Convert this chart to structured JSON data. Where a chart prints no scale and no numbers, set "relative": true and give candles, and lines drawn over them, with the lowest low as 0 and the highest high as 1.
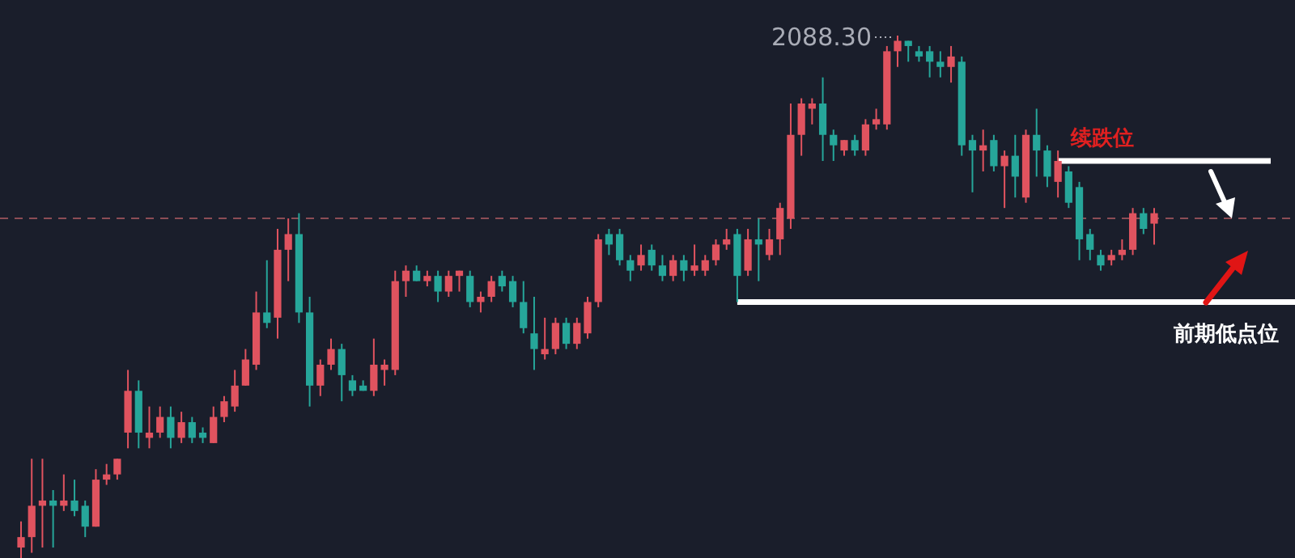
{
  "chart_data": {
    "type": "candlestick",
    "relative": true,
    "categories": [
      null,
      null,
      null,
      null,
      null,
      null,
      null,
      null,
      null,
      null,
      null,
      null,
      null,
      null,
      null,
      null,
      null,
      null,
      null,
      null,
      null,
      null,
      null,
      null,
      null,
      null,
      null,
      null,
      null,
      null,
      null,
      null,
      null,
      null,
      null,
      null,
      null,
      null,
      null,
      null,
      null,
      null,
      null,
      null,
      null,
      null,
      null,
      null,
      null,
      null,
      null,
      null,
      null,
      null,
      null,
      null,
      null,
      null,
      null,
      null,
      null,
      null,
      null,
      null,
      null,
      null,
      null,
      null,
      null,
      null,
      null,
      null,
      null,
      null,
      null,
      null,
      null,
      null,
      null,
      null,
      null,
      null,
      null,
      null,
      null,
      null,
      null,
      null,
      null,
      null,
      null,
      null,
      null,
      null,
      null,
      null,
      null,
      null,
      null,
      null,
      null,
      null,
      null,
      null,
      null,
      null,
      null
    ],
    "ohlc": [
      [
        0.02,
        0.07,
        0,
        0.04
      ],
      [
        0.04,
        0.19,
        0.01,
        0.1
      ],
      [
        0.1,
        0.19,
        0.02,
        0.11
      ],
      [
        0.11,
        0.13,
        0.02,
        0.1
      ],
      [
        0.1,
        0.16,
        0.09,
        0.11
      ],
      [
        0.11,
        0.15,
        0.08,
        0.09
      ],
      [
        0.1,
        0.11,
        0.04,
        0.06
      ],
      [
        0.06,
        0.17,
        0.06,
        0.15
      ],
      [
        0.15,
        0.18,
        0.14,
        0.16
      ],
      [
        0.16,
        0.19,
        0.15,
        0.19
      ],
      [
        0.24,
        0.36,
        0.21,
        0.32
      ],
      [
        0.32,
        0.34,
        0.21,
        0.24
      ],
      [
        0.23,
        0.29,
        0.21,
        0.24
      ],
      [
        0.24,
        0.29,
        0.23,
        0.27
      ],
      [
        0.27,
        0.29,
        0.21,
        0.23
      ],
      [
        0.23,
        0.28,
        0.22,
        0.26
      ],
      [
        0.26,
        0.27,
        0.22,
        0.23
      ],
      [
        0.24,
        0.25,
        0.22,
        0.23
      ],
      [
        0.22,
        0.29,
        0.22,
        0.27
      ],
      [
        0.27,
        0.31,
        0.26,
        0.3
      ],
      [
        0.29,
        0.36,
        0.28,
        0.33
      ],
      [
        0.33,
        0.4,
        0.33,
        0.38
      ],
      [
        0.37,
        0.51,
        0.36,
        0.47
      ],
      [
        0.47,
        0.57,
        0.44,
        0.45
      ],
      [
        0.46,
        0.63,
        0.42,
        0.59
      ],
      [
        0.59,
        0.65,
        0.53,
        0.62
      ],
      [
        0.62,
        0.66,
        0.45,
        0.47
      ],
      [
        0.47,
        0.5,
        0.29,
        0.33
      ],
      [
        0.33,
        0.38,
        0.31,
        0.37
      ],
      [
        0.37,
        0.42,
        0.36,
        0.4
      ],
      [
        0.4,
        0.41,
        0.3,
        0.35
      ],
      [
        0.34,
        0.35,
        0.31,
        0.32
      ],
      [
        0.33,
        0.34,
        0.32,
        0.32
      ],
      [
        0.32,
        0.42,
        0.31,
        0.37
      ],
      [
        0.36,
        0.38,
        0.33,
        0.37
      ],
      [
        0.36,
        0.55,
        0.35,
        0.53
      ],
      [
        0.53,
        0.56,
        0.5,
        0.55
      ],
      [
        0.55,
        0.56,
        0.53,
        0.53
      ],
      [
        0.53,
        0.55,
        0.52,
        0.54
      ],
      [
        0.54,
        0.55,
        0.49,
        0.51
      ],
      [
        0.51,
        0.55,
        0.5,
        0.54
      ],
      [
        0.54,
        0.55,
        0.51,
        0.55
      ],
      [
        0.54,
        0.55,
        0.48,
        0.49
      ],
      [
        0.49,
        0.51,
        0.47,
        0.5
      ],
      [
        0.5,
        0.54,
        0.49,
        0.53
      ],
      [
        0.54,
        0.55,
        0.51,
        0.52
      ],
      [
        0.53,
        0.54,
        0.48,
        0.49
      ],
      [
        0.49,
        0.53,
        0.43,
        0.44
      ],
      [
        0.43,
        0.5,
        0.36,
        0.4
      ],
      [
        0.39,
        0.46,
        0.38,
        0.4
      ],
      [
        0.4,
        0.46,
        0.39,
        0.45
      ],
      [
        0.45,
        0.46,
        0.4,
        0.41
      ],
      [
        0.41,
        0.46,
        0.4,
        0.45
      ],
      [
        0.43,
        0.5,
        0.42,
        0.49
      ],
      [
        0.49,
        0.62,
        0.48,
        0.61
      ],
      [
        0.62,
        0.63,
        0.58,
        0.6
      ],
      [
        0.62,
        0.63,
        0.56,
        0.57
      ],
      [
        0.57,
        0.58,
        0.53,
        0.55
      ],
      [
        0.56,
        0.6,
        0.55,
        0.58
      ],
      [
        0.59,
        0.6,
        0.55,
        0.56
      ],
      [
        0.56,
        0.58,
        0.53,
        0.54
      ],
      [
        0.54,
        0.58,
        0.53,
        0.57
      ],
      [
        0.57,
        0.58,
        0.53,
        0.55
      ],
      [
        0.55,
        0.6,
        0.54,
        0.56
      ],
      [
        0.55,
        0.58,
        0.54,
        0.57
      ],
      [
        0.57,
        0.61,
        0.56,
        0.6
      ],
      [
        0.6,
        0.63,
        0.59,
        0.61
      ],
      [
        0.62,
        0.63,
        0.49,
        0.54
      ],
      [
        0.55,
        0.63,
        0.54,
        0.61
      ],
      [
        0.61,
        0.65,
        0.53,
        0.6
      ],
      [
        0.58,
        0.63,
        0.57,
        0.61
      ],
      [
        0.61,
        0.68,
        0.58,
        0.67
      ],
      [
        0.65,
        0.87,
        0.63,
        0.81
      ],
      [
        0.81,
        0.88,
        0.77,
        0.87
      ],
      [
        0.86,
        0.88,
        0.83,
        0.87
      ],
      [
        0.87,
        0.92,
        0.76,
        0.81
      ],
      [
        0.81,
        0.82,
        0.76,
        0.79
      ],
      [
        0.78,
        0.8,
        0.77,
        0.8
      ],
      [
        0.8,
        0.81,
        0.77,
        0.78
      ],
      [
        0.78,
        0.84,
        0.77,
        0.83
      ],
      [
        0.83,
        0.86,
        0.82,
        0.84
      ],
      [
        0.83,
        0.98,
        0.82,
        0.97
      ],
      [
        0.97,
        1,
        0.94,
        0.99
      ],
      [
        0.99,
        0.99,
        0.95,
        0.98
      ],
      [
        0.97,
        0.98,
        0.95,
        0.96
      ],
      [
        0.97,
        0.98,
        0.92,
        0.95
      ],
      [
        0.95,
        0.97,
        0.92,
        0.94
      ],
      [
        0.94,
        0.98,
        0.91,
        0.96
      ],
      [
        0.95,
        0.96,
        0.77,
        0.79
      ],
      [
        0.8,
        0.81,
        0.7,
        0.78
      ],
      [
        0.78,
        0.82,
        0.74,
        0.79
      ],
      [
        0.8,
        0.81,
        0.74,
        0.75
      ],
      [
        0.75,
        0.78,
        0.67,
        0.77
      ],
      [
        0.77,
        0.81,
        0.69,
        0.73
      ],
      [
        0.69,
        0.82,
        0.68,
        0.81
      ],
      [
        0.81,
        0.86,
        0.73,
        0.78
      ],
      [
        0.78,
        0.79,
        0.71,
        0.73
      ],
      [
        0.72,
        0.78,
        0.69,
        0.76
      ],
      [
        0.74,
        0.75,
        0.67,
        0.68
      ],
      [
        0.71,
        0.72,
        0.57,
        0.61
      ],
      [
        0.62,
        0.63,
        0.57,
        0.59
      ],
      [
        0.58,
        0.59,
        0.55,
        0.56
      ],
      [
        0.57,
        0.59,
        0.56,
        0.58
      ],
      [
        0.58,
        0.61,
        0.57,
        0.59
      ],
      [
        0.59,
        0.67,
        0.58,
        0.66
      ],
      [
        0.66,
        0.67,
        0.62,
        0.63
      ],
      [
        0.64,
        0.67,
        0.6,
        0.66
      ]
    ],
    "colors": [
      "#e0535f",
      "#e0535f",
      "#e0535f",
      "#26a69a",
      "#e0535f",
      "#26a69a",
      "#26a69a",
      "#e0535f",
      "#e0535f",
      "#e0535f",
      "#e0535f",
      "#26a69a",
      "#e0535f",
      "#e0535f",
      "#26a69a",
      "#e0535f",
      "#26a69a",
      "#26a69a",
      "#e0535f",
      "#e0535f",
      "#e0535f",
      "#e0535f",
      "#e0535f",
      "#26a69a",
      "#e0535f",
      "#e0535f",
      "#26a69a",
      "#26a69a",
      "#e0535f",
      "#e0535f",
      "#26a69a",
      "#26a69a",
      "#26a69a",
      "#e0535f",
      "#e0535f",
      "#e0535f",
      "#e0535f",
      "#26a69a",
      "#e0535f",
      "#26a69a",
      "#e0535f",
      "#e0535f",
      "#26a69a",
      "#e0535f",
      "#e0535f",
      "#26a69a",
      "#26a69a",
      "#26a69a",
      "#26a69a",
      "#e0535f",
      "#e0535f",
      "#26a69a",
      "#e0535f",
      "#e0535f",
      "#e0535f",
      "#26a69a",
      "#26a69a",
      "#26a69a",
      "#e0535f",
      "#26a69a",
      "#26a69a",
      "#e0535f",
      "#26a69a",
      "#e0535f",
      "#e0535f",
      "#e0535f",
      "#e0535f",
      "#26a69a",
      "#e0535f",
      "#26a69a",
      "#e0535f",
      "#e0535f",
      "#e0535f",
      "#e0535f",
      "#e0535f",
      "#26a69a",
      "#26a69a",
      "#e0535f",
      "#26a69a",
      "#e0535f",
      "#e0535f",
      "#e0535f",
      "#e0535f",
      "#26a69a",
      "#26a69a",
      "#26a69a",
      "#26a69a",
      "#e0535f",
      "#26a69a",
      "#26a69a",
      "#e0535f",
      "#26a69a",
      "#e0535f",
      "#26a69a",
      "#e0535f",
      "#26a69a",
      "#26a69a",
      "#e0535f",
      "#26a69a",
      "#26a69a",
      "#26a69a",
      "#26a69a",
      "#e0535f",
      "#e0535f",
      "#e0535f",
      "#26a69a",
      "#e0535f"
    ],
    "annotations": [
      "2088.30"
    ],
    "ref_lines": [
      {
        "axis": "y",
        "value": 0.65,
        "color": "#8c4d55",
        "line_style": "dashed"
      },
      {
        "axis": "y",
        "value": 0.76,
        "color": "#ffffff",
        "label": "续跌位"
      },
      {
        "axis": "y",
        "value": 0.49,
        "color": "#ffffff",
        "label": "前期低点位"
      }
    ]
  }
}
